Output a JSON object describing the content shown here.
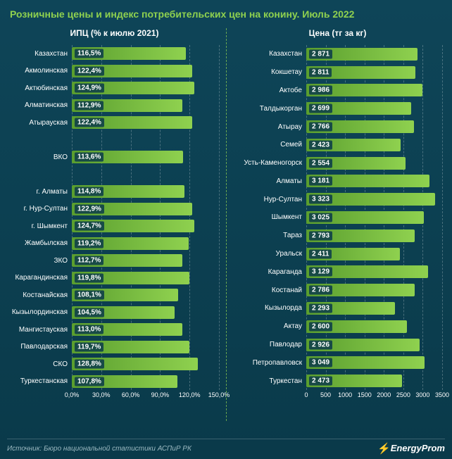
{
  "title": "Розничные цены и индекс потребительских цен на конину. Июль 2022",
  "source": "Источник: Бюро национальной статистики АСПиР РК",
  "brand_prefix": "Energy",
  "brand_suffix": "Prom",
  "colors": {
    "background_top": "#0e4558",
    "background_bottom": "#0a3a4a",
    "accent": "#8fd14f",
    "bar_gradient_start": "#5a9e2e",
    "bar_gradient_end": "#8fd14f",
    "text": "#ffffff",
    "source_text": "#9ab8c0",
    "grid": "rgba(255,255,255,0.25)",
    "value_bg": "rgba(10,58,74,0.85)"
  },
  "left_chart": {
    "type": "bar",
    "title": "ИПЦ (% к июлю 2021)",
    "xmin": 0,
    "xmax": 150,
    "xticks": [
      0,
      30,
      60,
      90,
      120,
      150
    ],
    "xtick_labels": [
      "0,0%",
      "30,0%",
      "60,0%",
      "90,0%",
      "120,0%",
      "150,0%"
    ],
    "label_fontsize": 10,
    "value_fontsize": 10,
    "rows": [
      {
        "label": "Казахстан",
        "value": 116.5,
        "display": "116,5%"
      },
      {
        "label": "Акмолинская",
        "value": 122.4,
        "display": "122,4%"
      },
      {
        "label": "Актюбинская",
        "value": 124.9,
        "display": "124,9%"
      },
      {
        "label": "Алматинская",
        "value": 112.9,
        "display": "112,9%"
      },
      {
        "label": "Атырауская",
        "value": 122.4,
        "display": "122,4%"
      },
      null,
      {
        "label": "ВКО",
        "value": 113.6,
        "display": "113,6%"
      },
      null,
      {
        "label": "г. Алматы",
        "value": 114.8,
        "display": "114,8%"
      },
      {
        "label": "г. Нур-Султан",
        "value": 122.9,
        "display": "122,9%"
      },
      {
        "label": "г. Шымкент",
        "value": 124.7,
        "display": "124,7%"
      },
      {
        "label": "Жамбылская",
        "value": 119.2,
        "display": "119,2%"
      },
      {
        "label": "ЗКО",
        "value": 112.7,
        "display": "112,7%"
      },
      {
        "label": "Карагандинская",
        "value": 119.8,
        "display": "119,8%"
      },
      {
        "label": "Костанайская",
        "value": 108.1,
        "display": "108,1%"
      },
      {
        "label": "Кызылординская",
        "value": 104.5,
        "display": "104,5%"
      },
      {
        "label": "Мангистауская",
        "value": 113.0,
        "display": "113,0%"
      },
      {
        "label": "Павлодарская",
        "value": 119.7,
        "display": "119,7%"
      },
      {
        "label": "СКО",
        "value": 128.8,
        "display": "128,8%"
      },
      {
        "label": "Туркестанская",
        "value": 107.8,
        "display": "107,8%"
      }
    ]
  },
  "right_chart": {
    "type": "bar",
    "title": "Цена (тг за кг)",
    "xmin": 0,
    "xmax": 3500,
    "xticks": [
      0,
      500,
      1000,
      1500,
      2000,
      2500,
      3000,
      3500
    ],
    "xtick_labels": [
      "0",
      "500",
      "1000",
      "1500",
      "2000",
      "2500",
      "3000",
      "3500"
    ],
    "label_fontsize": 10,
    "value_fontsize": 10,
    "rows": [
      {
        "label": "Казахстан",
        "value": 2871,
        "display": "2 871"
      },
      {
        "label": "Кокшетау",
        "value": 2811,
        "display": "2 811"
      },
      {
        "label": "Актобе",
        "value": 2986,
        "display": "2 986"
      },
      {
        "label": "Талдыкорган",
        "value": 2699,
        "display": "2 699"
      },
      {
        "label": "Атырау",
        "value": 2766,
        "display": "2 766"
      },
      {
        "label": "Семей",
        "value": 2423,
        "display": "2 423"
      },
      {
        "label": "Усть-Каменогорск",
        "value": 2554,
        "display": "2 554"
      },
      {
        "label": "Алматы",
        "value": 3181,
        "display": "3 181"
      },
      {
        "label": "Нур-Султан",
        "value": 3323,
        "display": "3 323"
      },
      {
        "label": "Шымкент",
        "value": 3025,
        "display": "3 025"
      },
      {
        "label": "Тараз",
        "value": 2793,
        "display": "2 793"
      },
      {
        "label": "Уральск",
        "value": 2411,
        "display": "2 411"
      },
      {
        "label": "Караганда",
        "value": 3129,
        "display": "3 129"
      },
      {
        "label": "Костанай",
        "value": 2786,
        "display": "2 786"
      },
      {
        "label": "Кызылорда",
        "value": 2293,
        "display": "2 293"
      },
      {
        "label": "Актау",
        "value": 2600,
        "display": "2 600"
      },
      {
        "label": "Павлодар",
        "value": 2926,
        "display": "2 926"
      },
      {
        "label": "Петропавловск",
        "value": 3049,
        "display": "3 049"
      },
      {
        "label": "Туркестан",
        "value": 2473,
        "display": "2 473"
      }
    ]
  }
}
